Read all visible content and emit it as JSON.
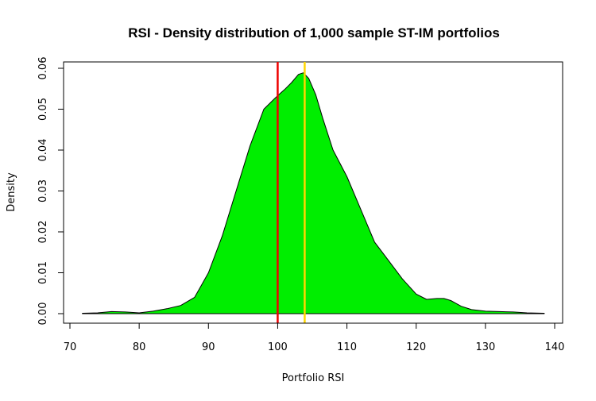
{
  "chart_data": {
    "type": "area",
    "title": "RSI - Density distribution of 1,000 sample ST-IM portfolios",
    "xlabel": "Portfolio RSI",
    "ylabel": "Density",
    "xlim": [
      70,
      140
    ],
    "ylim": [
      0,
      0.06
    ],
    "x_ticks": [
      70,
      80,
      90,
      100,
      110,
      120,
      130,
      140
    ],
    "y_ticks": [
      0.0,
      0.01,
      0.02,
      0.03,
      0.04,
      0.05,
      0.06
    ],
    "y_tick_labels": [
      "0.00",
      "0.01",
      "0.02",
      "0.03",
      "0.04",
      "0.05",
      "0.06"
    ],
    "grid": false,
    "series": [
      {
        "fill": "#00ee00",
        "x": [
          71.8,
          74,
          76,
          78,
          80,
          82,
          84,
          86,
          88,
          90,
          92,
          94,
          96,
          98,
          99.5,
          100,
          101,
          102,
          103,
          103.7,
          104.5,
          105.5,
          106.5,
          108,
          110,
          112,
          114,
          116,
          118,
          120,
          121.5,
          123,
          124,
          125,
          126.5,
          128,
          130,
          132,
          134,
          136,
          138.5
        ],
        "y": [
          0.0001,
          0.0002,
          0.0005,
          0.0004,
          0.0002,
          0.0006,
          0.0012,
          0.002,
          0.004,
          0.01,
          0.019,
          0.03,
          0.041,
          0.05,
          0.0525,
          0.0533,
          0.0548,
          0.0565,
          0.0585,
          0.0589,
          0.0575,
          0.0535,
          0.0478,
          0.04,
          0.0335,
          0.0255,
          0.0175,
          0.013,
          0.0085,
          0.0048,
          0.0035,
          0.0037,
          0.0037,
          0.0032,
          0.0018,
          0.001,
          0.0006,
          0.0005,
          0.0004,
          0.0002,
          0.0001
        ]
      }
    ],
    "vlines": [
      {
        "x": 100,
        "color": "#ee0000"
      },
      {
        "x": 103.9,
        "color": "#ffd700"
      }
    ]
  }
}
